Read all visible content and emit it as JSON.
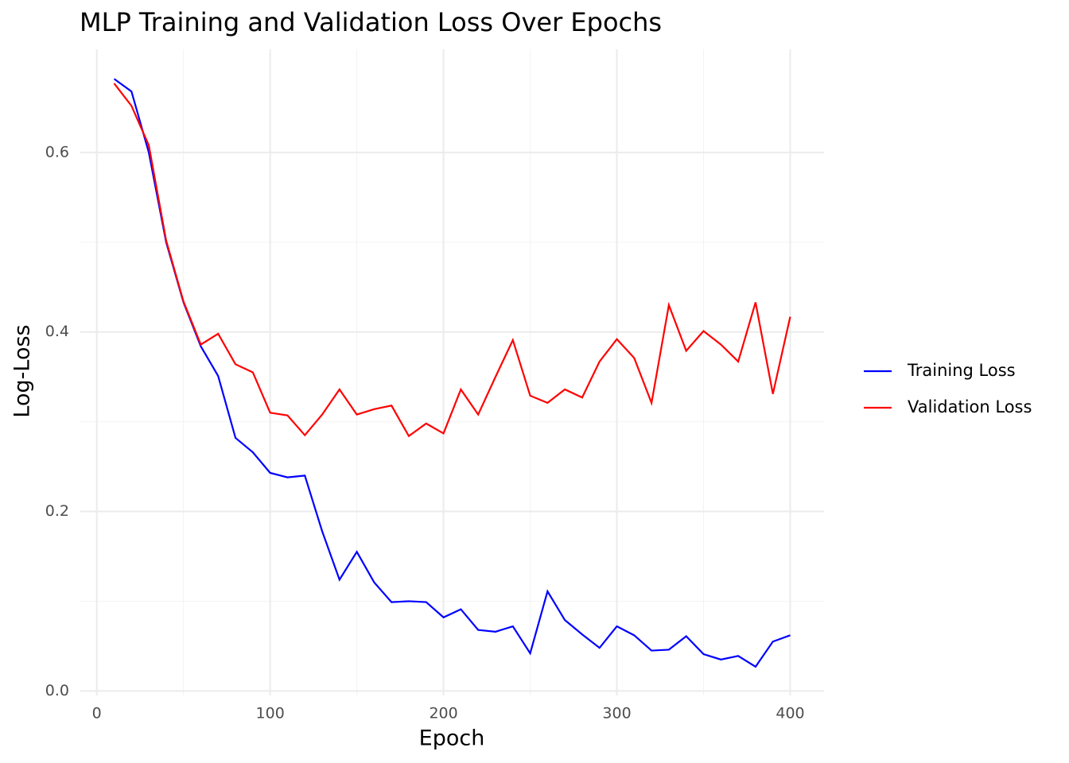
{
  "chart_data": {
    "type": "line",
    "title": "MLP Training and Validation Loss Over Epochs",
    "x_label": "Epoch",
    "y_label": "Log-Loss",
    "x": [
      10,
      20,
      30,
      40,
      50,
      60,
      70,
      80,
      90,
      100,
      110,
      120,
      130,
      140,
      150,
      160,
      170,
      180,
      190,
      200,
      210,
      220,
      230,
      240,
      250,
      260,
      270,
      280,
      290,
      300,
      310,
      320,
      330,
      340,
      350,
      360,
      370,
      380,
      390,
      400
    ],
    "series": [
      {
        "name": "Training Loss",
        "color": "#0000ff",
        "values": [
          0.682,
          0.668,
          0.6,
          0.5,
          0.433,
          0.384,
          0.351,
          0.282,
          0.266,
          0.243,
          0.238,
          0.24,
          0.178,
          0.124,
          0.155,
          0.121,
          0.099,
          0.1,
          0.099,
          0.082,
          0.091,
          0.068,
          0.066,
          0.072,
          0.042,
          0.111,
          0.079,
          0.063,
          0.048,
          0.072,
          0.062,
          0.045,
          0.046,
          0.061,
          0.041,
          0.035,
          0.039,
          0.027,
          0.055,
          0.062
        ]
      },
      {
        "name": "Validation Loss",
        "color": "#ff0000",
        "values": [
          0.677,
          0.652,
          0.608,
          0.502,
          0.434,
          0.386,
          0.398,
          0.364,
          0.355,
          0.31,
          0.307,
          0.285,
          0.308,
          0.336,
          0.308,
          0.314,
          0.318,
          0.284,
          0.298,
          0.287,
          0.336,
          0.308,
          0.35,
          0.391,
          0.329,
          0.321,
          0.336,
          0.327,
          0.367,
          0.392,
          0.371,
          0.321,
          0.43,
          0.379,
          0.401,
          0.386,
          0.367,
          0.433,
          0.331,
          0.417
        ]
      }
    ],
    "xlim": [
      -9.5,
      419.5
    ],
    "ylim": [
      -0.005,
      0.715
    ],
    "xticks": [
      0,
      100,
      200,
      300,
      400
    ],
    "yticks": [
      {
        "value": 0,
        "label": "0.0"
      },
      0.2,
      0.4,
      0.6
    ],
    "x_minor_ticks": [
      50,
      150,
      250,
      350
    ],
    "y_minor_ticks": [
      0.1,
      0.3,
      0.5
    ],
    "grid": true,
    "legend": "right"
  }
}
